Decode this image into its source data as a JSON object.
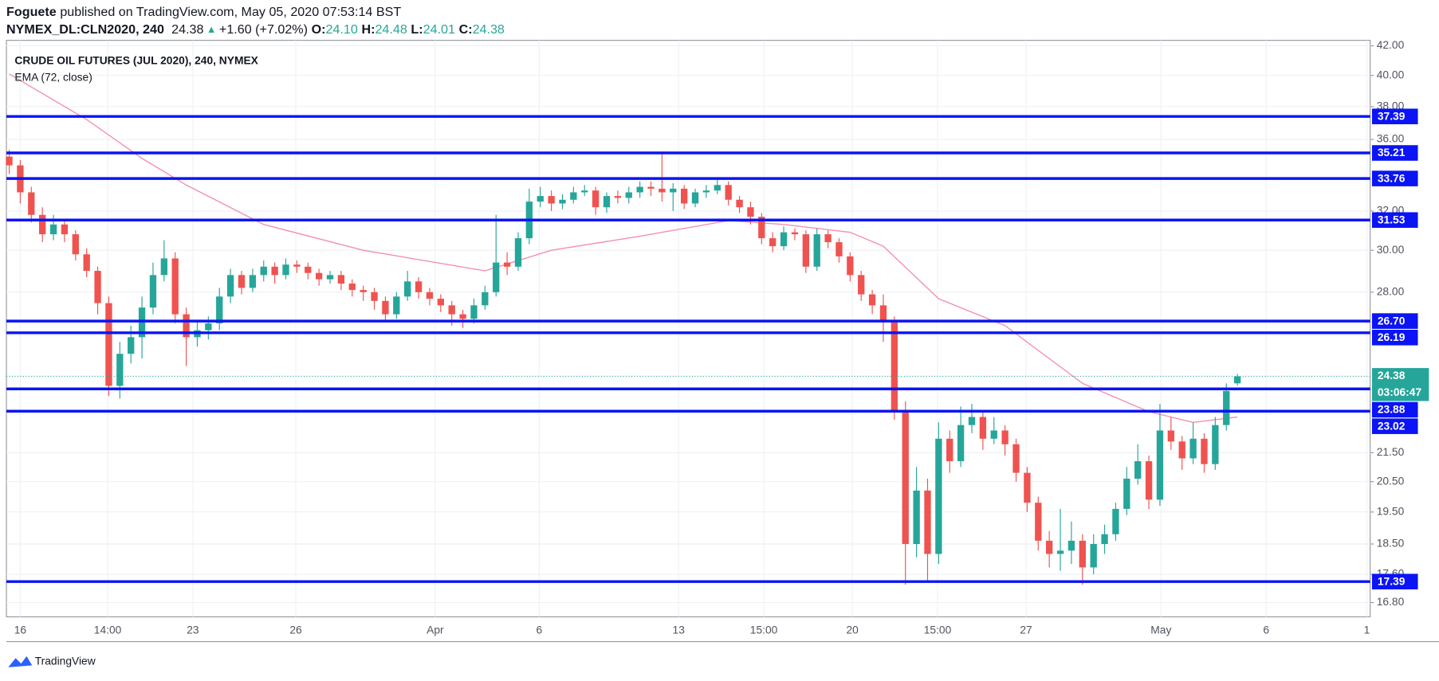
{
  "chart_data": {
    "type": "candlestick",
    "author": "Foguete",
    "published": "published on TradingView.com, May 05, 2020 07:53:14 BST",
    "symbol": "NYMEX_DL:CLN2020, 240",
    "last": "24.38",
    "arrow": "▲",
    "change": "+1.60 (+7.02%)",
    "ohlc_labels": [
      "O:",
      "H:",
      "L:",
      "C:"
    ],
    "ohlc_values": [
      "24.10",
      "24.48",
      "24.01",
      "24.38"
    ],
    "title": "CRUDE OIL FUTURES (JUL 2020), 240, NYMEX",
    "brand": "TradingView",
    "log_scale": true,
    "grid": true,
    "xlim": [
      -0.25,
      123
    ],
    "ylim": [
      16.41,
      42.38
    ],
    "xticks": [
      {
        "value": 1.0,
        "label": "16"
      },
      {
        "value": 8.9,
        "label": "14:00"
      },
      {
        "value": 16.6,
        "label": "23"
      },
      {
        "value": 25.9,
        "label": "26"
      },
      {
        "value": 38.5,
        "label": "Apr"
      },
      {
        "value": 47.9,
        "label": "6"
      },
      {
        "value": 60.5,
        "label": "13"
      },
      {
        "value": 68.2,
        "label": "15:00"
      },
      {
        "value": 76.2,
        "label": "20"
      },
      {
        "value": 83.9,
        "label": "15:00"
      },
      {
        "value": 91.9,
        "label": "27"
      },
      {
        "value": 104.1,
        "label": "May"
      },
      {
        "value": 113.6,
        "label": "6"
      },
      {
        "value": 122.7,
        "label": "1"
      }
    ],
    "yticks": [
      {
        "value": 42,
        "label": "42.00"
      },
      {
        "value": 40,
        "label": "40.00"
      },
      {
        "value": 38,
        "label": "38.00"
      },
      {
        "value": 36,
        "label": "36.00"
      },
      {
        "value": 32,
        "label": "32.00"
      },
      {
        "value": 30,
        "label": "30.00"
      },
      {
        "value": 28,
        "label": "28.00"
      },
      {
        "value": 21.5,
        "label": "21.50"
      },
      {
        "value": 20.5,
        "label": "20.50"
      },
      {
        "value": 19.5,
        "label": "19.50"
      },
      {
        "value": 18.5,
        "label": "18.50"
      },
      {
        "value": 17.6,
        "label": "17.60"
      },
      {
        "value": 16.8,
        "label": "16.80"
      }
    ],
    "levels_color": "#0a14f5",
    "levels": [
      {
        "value": 37.39,
        "label": "37.39"
      },
      {
        "value": 35.21,
        "label": "35.21"
      },
      {
        "value": 33.76,
        "label": "33.76"
      },
      {
        "value": 31.53,
        "label": "31.53"
      },
      {
        "value": 26.7,
        "label": "26.70"
      },
      {
        "value": 26.19,
        "label": "26.19"
      },
      {
        "value": 23.88,
        "label": "23.88"
      },
      {
        "value": 23.02,
        "label": "23.02"
      },
      {
        "value": 17.39,
        "label": "17.39"
      }
    ],
    "price_line": {
      "value": 24.38,
      "countdown": "03:06:47",
      "color": "#26a69a"
    },
    "ema": {
      "name": "EMA (72, close)",
      "color": "#f48fb1",
      "x": [
        0,
        7,
        12,
        16,
        23,
        32,
        43,
        49,
        57,
        65,
        70,
        76,
        79,
        84,
        90,
        97,
        103,
        107,
        111
      ],
      "values": [
        40.1,
        37.2,
        34.9,
        33.4,
        31.3,
        30.0,
        29.0,
        30.0,
        30.7,
        31.5,
        31.3,
        30.9,
        30.2,
        27.7,
        26.5,
        24.1,
        23.0,
        22.6,
        22.8
      ]
    },
    "candles": {
      "up_color": "#26a69a",
      "down_color": "#ef5350",
      "ohlc": [
        [
          35.0,
          35.4,
          34.0,
          34.5
        ],
        [
          34.5,
          34.8,
          32.4,
          33.0
        ],
        [
          33.0,
          33.3,
          31.4,
          31.8
        ],
        [
          31.8,
          32.2,
          30.4,
          30.8
        ],
        [
          30.8,
          31.8,
          30.5,
          31.3
        ],
        [
          31.3,
          31.6,
          30.4,
          30.8
        ],
        [
          30.8,
          31.0,
          29.5,
          29.8
        ],
        [
          29.8,
          30.1,
          28.7,
          29.0
        ],
        [
          29.0,
          29.2,
          27.0,
          27.5
        ],
        [
          27.5,
          27.8,
          23.6,
          24.0
        ],
        [
          24.0,
          25.8,
          23.5,
          25.3
        ],
        [
          25.3,
          26.5,
          24.9,
          26.0
        ],
        [
          26.0,
          27.8,
          25.1,
          27.3
        ],
        [
          27.3,
          29.4,
          27.0,
          28.8
        ],
        [
          28.8,
          30.5,
          28.5,
          29.6
        ],
        [
          29.6,
          29.9,
          26.6,
          27.0
        ],
        [
          27.0,
          27.3,
          24.8,
          26.0
        ],
        [
          26.0,
          26.7,
          25.6,
          26.3
        ],
        [
          26.3,
          26.9,
          25.9,
          26.6
        ],
        [
          26.6,
          28.2,
          26.3,
          27.8
        ],
        [
          27.8,
          29.1,
          27.5,
          28.8
        ],
        [
          28.8,
          29.0,
          27.9,
          28.2
        ],
        [
          28.2,
          29.1,
          28.0,
          28.8
        ],
        [
          28.8,
          29.5,
          28.5,
          29.2
        ],
        [
          29.2,
          29.4,
          28.4,
          28.8
        ],
        [
          28.8,
          29.6,
          28.6,
          29.3
        ],
        [
          29.3,
          29.5,
          28.9,
          29.2
        ],
        [
          29.2,
          29.4,
          28.6,
          28.9
        ],
        [
          28.9,
          29.1,
          28.3,
          28.6
        ],
        [
          28.6,
          29.0,
          28.4,
          28.8
        ],
        [
          28.8,
          29.0,
          28.1,
          28.4
        ],
        [
          28.4,
          28.6,
          27.8,
          28.1
        ],
        [
          28.1,
          28.3,
          27.6,
          28.0
        ],
        [
          28.0,
          28.2,
          27.2,
          27.6
        ],
        [
          27.6,
          27.8,
          26.7,
          27.0
        ],
        [
          27.0,
          28.0,
          26.8,
          27.8
        ],
        [
          27.8,
          29.0,
          27.6,
          28.5
        ],
        [
          28.5,
          28.7,
          27.7,
          28.0
        ],
        [
          28.0,
          28.2,
          27.4,
          27.7
        ],
        [
          27.7,
          27.9,
          27.1,
          27.4
        ],
        [
          27.4,
          27.6,
          26.5,
          27.0
        ],
        [
          27.0,
          27.2,
          26.4,
          26.8
        ],
        [
          26.8,
          27.7,
          26.6,
          27.4
        ],
        [
          27.4,
          28.3,
          27.2,
          28.0
        ],
        [
          28.0,
          31.8,
          27.8,
          29.4
        ],
        [
          29.4,
          29.9,
          28.8,
          29.2
        ],
        [
          29.2,
          30.9,
          29.0,
          30.6
        ],
        [
          30.6,
          33.2,
          30.3,
          32.5
        ],
        [
          32.5,
          33.3,
          32.2,
          32.8
        ],
        [
          32.8,
          33.1,
          32.0,
          32.4
        ],
        [
          32.4,
          32.9,
          32.1,
          32.6
        ],
        [
          32.6,
          33.3,
          32.4,
          33.0
        ],
        [
          33.0,
          33.4,
          32.8,
          33.1
        ],
        [
          33.1,
          33.3,
          31.8,
          32.2
        ],
        [
          32.2,
          33.0,
          31.9,
          32.8
        ],
        [
          32.8,
          33.1,
          32.4,
          32.7
        ],
        [
          32.7,
          33.3,
          32.4,
          33.0
        ],
        [
          33.0,
          33.6,
          32.7,
          33.3
        ],
        [
          33.3,
          33.6,
          32.8,
          33.2
        ],
        [
          33.2,
          35.3,
          32.5,
          33.0
        ],
        [
          33.0,
          33.5,
          32.0,
          33.2
        ],
        [
          33.2,
          33.4,
          32.1,
          32.4
        ],
        [
          32.4,
          33.2,
          32.2,
          33.0
        ],
        [
          33.0,
          33.4,
          32.7,
          33.1
        ],
        [
          33.1,
          33.8,
          32.9,
          33.4
        ],
        [
          33.4,
          33.6,
          32.3,
          32.6
        ],
        [
          32.6,
          32.8,
          31.9,
          32.2
        ],
        [
          32.2,
          32.5,
          31.3,
          31.7
        ],
        [
          31.7,
          31.9,
          30.3,
          30.6
        ],
        [
          30.6,
          30.9,
          29.9,
          30.2
        ],
        [
          30.2,
          31.2,
          30.0,
          30.9
        ],
        [
          30.9,
          31.1,
          30.5,
          30.8
        ],
        [
          30.8,
          31.0,
          28.9,
          29.2
        ],
        [
          29.2,
          31.1,
          29.0,
          30.8
        ],
        [
          30.8,
          31.0,
          30.1,
          30.4
        ],
        [
          30.4,
          30.6,
          29.4,
          29.7
        ],
        [
          29.7,
          29.9,
          28.5,
          28.8
        ],
        [
          28.8,
          29.0,
          27.6,
          27.9
        ],
        [
          27.9,
          28.1,
          27.0,
          27.4
        ],
        [
          27.4,
          27.9,
          25.8,
          26.7
        ],
        [
          26.7,
          26.9,
          22.7,
          23.0
        ],
        [
          23.0,
          23.4,
          17.3,
          18.5
        ],
        [
          18.5,
          21.0,
          18.1,
          20.2
        ],
        [
          20.2,
          20.6,
          17.4,
          18.2
        ],
        [
          18.2,
          22.6,
          17.9,
          22.0
        ],
        [
          22.0,
          22.3,
          20.8,
          21.2
        ],
        [
          21.2,
          23.2,
          21.0,
          22.5
        ],
        [
          22.5,
          23.3,
          22.2,
          22.8
        ],
        [
          22.8,
          23.0,
          21.6,
          22.0
        ],
        [
          22.0,
          22.8,
          21.8,
          22.3
        ],
        [
          22.3,
          22.5,
          21.4,
          21.8
        ],
        [
          21.8,
          22.0,
          20.5,
          20.8
        ],
        [
          20.8,
          21.0,
          19.5,
          19.8
        ],
        [
          19.8,
          20.0,
          18.3,
          18.6
        ],
        [
          18.6,
          18.9,
          17.8,
          18.2
        ],
        [
          18.2,
          19.6,
          17.7,
          18.3
        ],
        [
          18.3,
          19.2,
          17.9,
          18.6
        ],
        [
          18.6,
          18.8,
          17.3,
          17.8
        ],
        [
          17.8,
          18.8,
          17.6,
          18.5
        ],
        [
          18.5,
          19.1,
          18.2,
          18.8
        ],
        [
          18.8,
          19.8,
          18.6,
          19.6
        ],
        [
          19.6,
          21.0,
          19.4,
          20.6
        ],
        [
          20.6,
          21.8,
          20.4,
          21.2
        ],
        [
          21.2,
          21.4,
          19.6,
          19.9
        ],
        [
          19.9,
          23.3,
          19.7,
          22.3
        ],
        [
          22.3,
          22.8,
          21.6,
          21.9
        ],
        [
          21.9,
          22.1,
          20.9,
          21.3
        ],
        [
          21.3,
          22.6,
          21.1,
          22.0
        ],
        [
          22.0,
          22.2,
          20.8,
          21.1
        ],
        [
          21.1,
          22.8,
          20.9,
          22.5
        ],
        [
          22.5,
          24.1,
          22.3,
          23.8
        ],
        [
          24.1,
          24.48,
          24.01,
          24.38
        ]
      ]
    }
  }
}
